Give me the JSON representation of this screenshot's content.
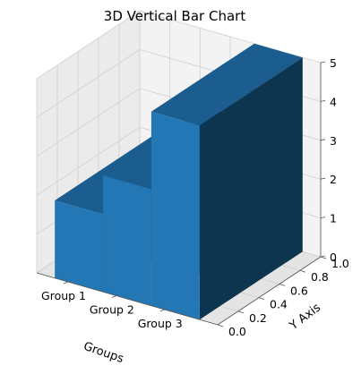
{
  "chart_data": {
    "type": "bar",
    "projection": "3d",
    "title": "3D Vertical Bar Chart",
    "xlabel": "Groups",
    "ylabel": "Y Axis",
    "zlabel": "",
    "categories": [
      "Group 1",
      "Group 2",
      "Group 3"
    ],
    "values": [
      2,
      3,
      5
    ],
    "ylim": [
      0,
      1
    ],
    "zlim": [
      0,
      5
    ],
    "y_ticks": [
      "0.0",
      "0.2",
      "0.4",
      "0.6",
      "0.8",
      "1.0"
    ],
    "z_ticks": [
      "0",
      "1",
      "2",
      "3",
      "4",
      "5"
    ],
    "grid": true,
    "colors": {
      "bar_front": "#2277b4",
      "bar_top": "#1a5d8e",
      "bar_side": "#0e354f",
      "pane_back": "#f3f3f3",
      "pane_side": "#ebebeb",
      "pane_floor": "#e4e4e4",
      "grid": "#d0d0d0"
    }
  }
}
